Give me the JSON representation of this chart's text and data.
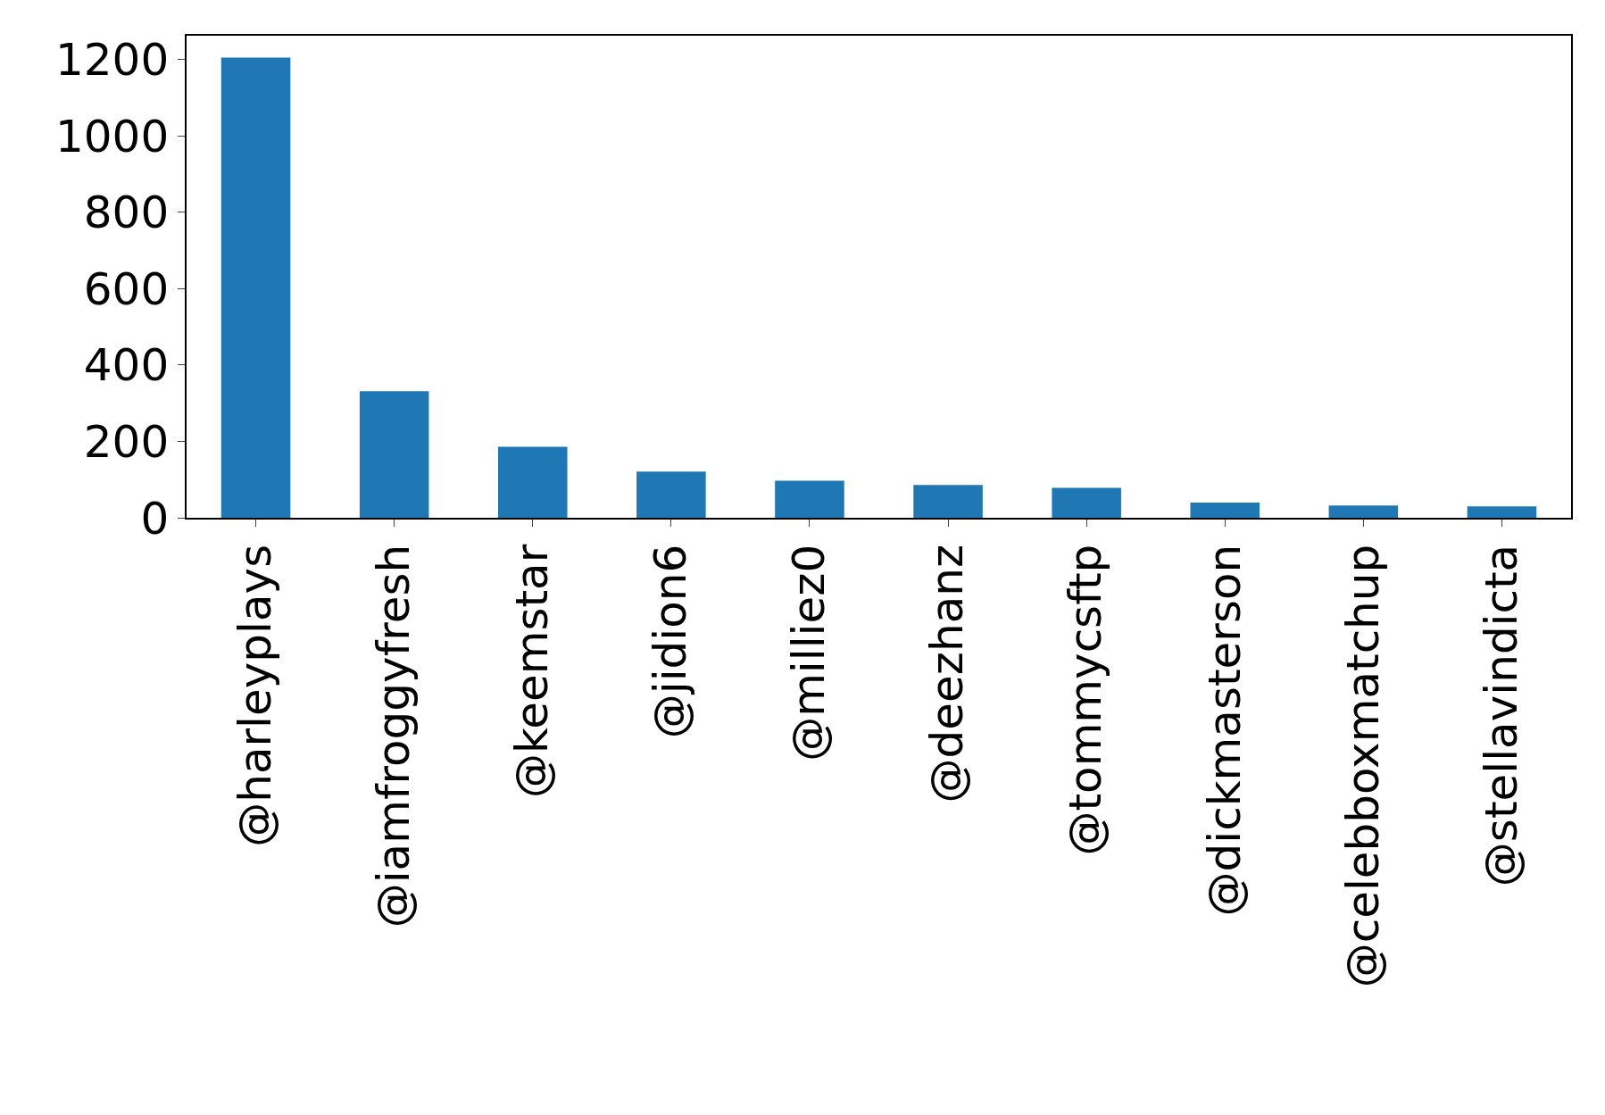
{
  "chart_data": {
    "type": "bar",
    "categories": [
      "@harleyplays",
      "@iamfroggyfresh",
      "@keemstar",
      "@jidion6",
      "@milliez0",
      "@deezhanz",
      "@tommycsftp",
      "@dickmasterson",
      "@celebboxmatchup",
      "@stellavindicta"
    ],
    "values": [
      1205,
      331,
      186,
      121,
      97,
      86,
      78,
      40,
      32,
      30
    ],
    "color": "#1f77b4",
    "ylim": [
      0,
      1262
    ],
    "yticks": [
      0,
      200,
      400,
      600,
      800,
      1000,
      1200
    ],
    "grid": false
  }
}
